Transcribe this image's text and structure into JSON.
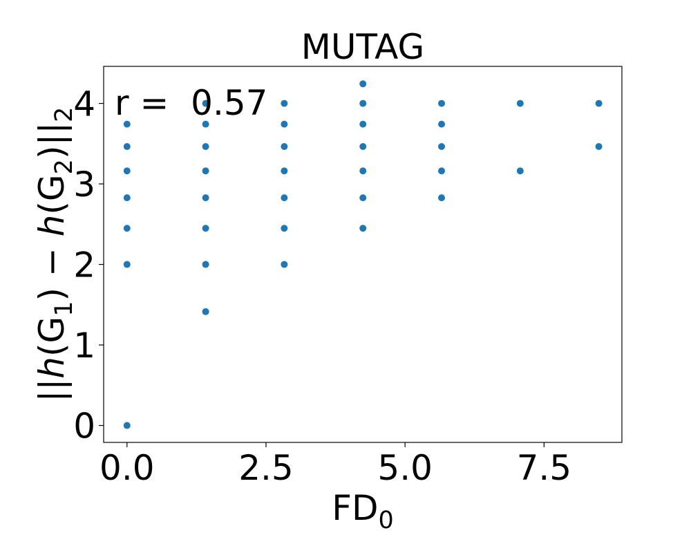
{
  "chart_data": {
    "type": "scatter",
    "title": "MUTAG",
    "xlabel_main": "FD",
    "xlabel_sub": "0",
    "ylabel_parts": {
      "open_norm": "||",
      "h1": "h",
      "g1_open": "(G",
      "g1_sub": "1",
      "close1_minus": ") − ",
      "h2": "h",
      "g2_open": "(G",
      "g2_sub": "2",
      "close2": ")",
      "close_norm": "||",
      "norm_sub": "2"
    },
    "annotation": "r =  0.57",
    "xlim": [
      -0.42,
      8.9
    ],
    "ylim": [
      -0.21,
      4.46
    ],
    "xticks": [
      0.0,
      2.5,
      5.0,
      7.5
    ],
    "xtick_labels": [
      "0.0",
      "2.5",
      "5.0",
      "7.5"
    ],
    "yticks": [
      0,
      1,
      2,
      3,
      4
    ],
    "ytick_labels": [
      "0",
      "1",
      "2",
      "3",
      "4"
    ],
    "marker_color": "#1f77b4",
    "points": [
      {
        "x": 0,
        "y": 0
      },
      {
        "x": 0,
        "y": 2
      },
      {
        "x": 0,
        "y": 2.449
      },
      {
        "x": 0,
        "y": 2.828
      },
      {
        "x": 0,
        "y": 3.162
      },
      {
        "x": 0,
        "y": 3.464
      },
      {
        "x": 0,
        "y": 3.742
      },
      {
        "x": 1.414,
        "y": 1.414
      },
      {
        "x": 1.414,
        "y": 2
      },
      {
        "x": 1.414,
        "y": 2.449
      },
      {
        "x": 1.414,
        "y": 2.828
      },
      {
        "x": 1.414,
        "y": 3.162
      },
      {
        "x": 1.414,
        "y": 3.464
      },
      {
        "x": 1.414,
        "y": 3.742
      },
      {
        "x": 1.414,
        "y": 4
      },
      {
        "x": 2.828,
        "y": 2
      },
      {
        "x": 2.828,
        "y": 2.449
      },
      {
        "x": 2.828,
        "y": 2.828
      },
      {
        "x": 2.828,
        "y": 3.162
      },
      {
        "x": 2.828,
        "y": 3.464
      },
      {
        "x": 2.828,
        "y": 3.742
      },
      {
        "x": 2.828,
        "y": 4
      },
      {
        "x": 4.243,
        "y": 2.449
      },
      {
        "x": 4.243,
        "y": 2.828
      },
      {
        "x": 4.243,
        "y": 3.162
      },
      {
        "x": 4.243,
        "y": 3.464
      },
      {
        "x": 4.243,
        "y": 3.742
      },
      {
        "x": 4.243,
        "y": 4
      },
      {
        "x": 4.243,
        "y": 4.243
      },
      {
        "x": 5.657,
        "y": 2.828
      },
      {
        "x": 5.657,
        "y": 3.162
      },
      {
        "x": 5.657,
        "y": 3.464
      },
      {
        "x": 5.657,
        "y": 3.742
      },
      {
        "x": 5.657,
        "y": 4
      },
      {
        "x": 7.071,
        "y": 3.162
      },
      {
        "x": 7.071,
        "y": 4
      },
      {
        "x": 8.485,
        "y": 3.464
      },
      {
        "x": 8.485,
        "y": 4
      }
    ]
  }
}
